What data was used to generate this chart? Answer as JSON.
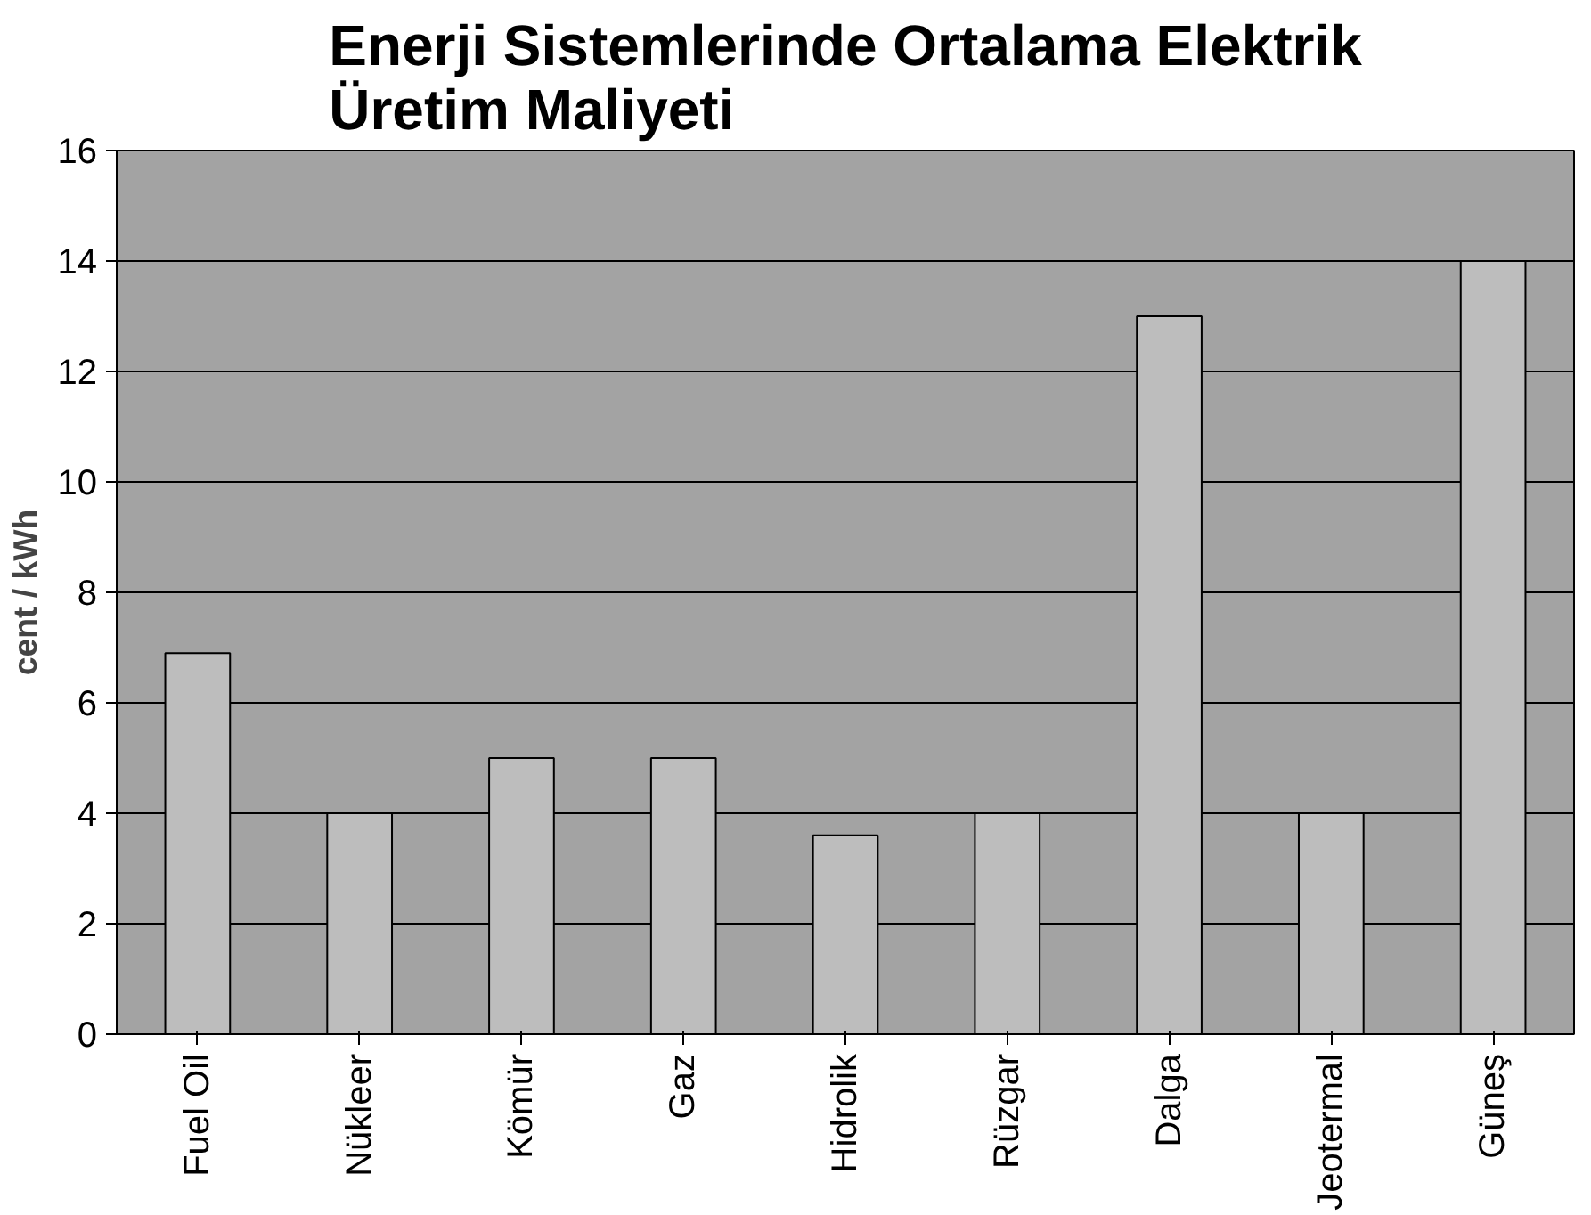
{
  "chart_data": {
    "type": "bar",
    "title": "Enerji Sistemlerinde Ortalama Elektrik\nÜretim Maliyeti",
    "ylabel": "cent / kWh",
    "categories": [
      "Fuel Oil",
      "Nükleer",
      "Kömür",
      "Gaz",
      "Hidrolik",
      "Rüzgar",
      "Dalga",
      "Jeotermal",
      "Güneş"
    ],
    "values": [
      6.9,
      4,
      5,
      5,
      3.6,
      4,
      13,
      4,
      14
    ],
    "color": "#bdbdbd",
    "ylim": [
      0,
      16
    ],
    "yticks": [
      0,
      2,
      4,
      6,
      8,
      10,
      12,
      14,
      16
    ],
    "grid": "y"
  }
}
